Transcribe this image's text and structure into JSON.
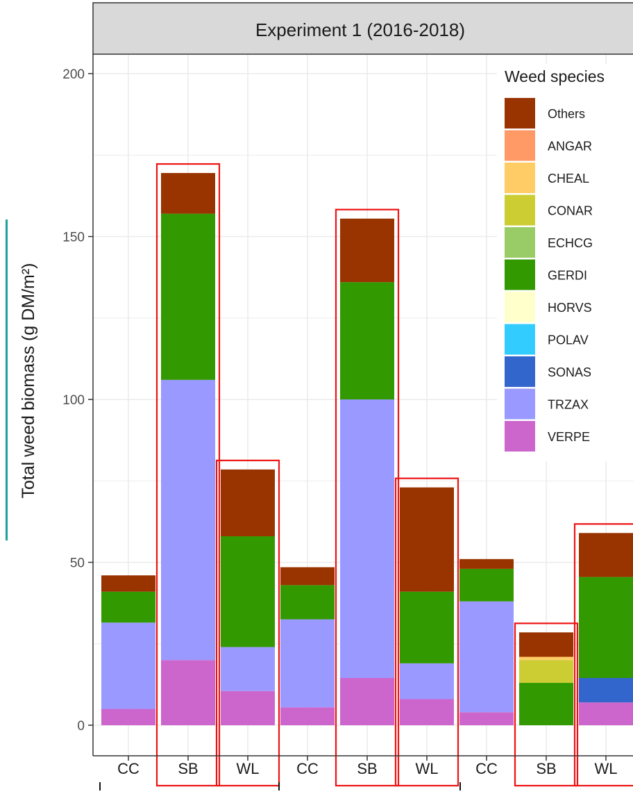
{
  "chart_data": {
    "type": "bar",
    "stacked": true,
    "title": "Experiment 1 (2016-2018)",
    "ylabel": "Total weed biomass (g DM/m²)",
    "xlabel": "",
    "ylim": [
      -10,
      200
    ],
    "yticks": [
      0,
      50,
      100,
      150,
      200
    ],
    "grid": true,
    "legend_position": "top-right",
    "legend_title": "Weed species",
    "categories": [
      "CC",
      "SB",
      "WL",
      "CC",
      "SB",
      "WL",
      "CC",
      "SB",
      "WL"
    ],
    "highlighted": [
      false,
      true,
      true,
      false,
      true,
      true,
      false,
      true,
      true
    ],
    "series": [
      {
        "name": "VERPE",
        "color": "#cc66cc",
        "values": [
          5,
          20,
          10.5,
          5.5,
          14.5,
          8,
          4,
          0,
          7
        ]
      },
      {
        "name": "TRZAX",
        "color": "#9999ff",
        "values": [
          26.5,
          86,
          13.5,
          27,
          85.5,
          11,
          34,
          0,
          0
        ]
      },
      {
        "name": "SONAS",
        "color": "#3366cc",
        "values": [
          0,
          0,
          0,
          0,
          0,
          0,
          0,
          0,
          7.5
        ]
      },
      {
        "name": "POLAV",
        "color": "#33ccff",
        "values": [
          0,
          0,
          0,
          0,
          0,
          0,
          0,
          0,
          0
        ]
      },
      {
        "name": "HORVS",
        "color": "#ffffcc",
        "values": [
          0,
          0,
          0,
          0,
          0,
          0,
          0,
          0,
          0
        ]
      },
      {
        "name": "GERDI",
        "color": "#339900",
        "values": [
          9.5,
          51,
          34,
          10.5,
          36,
          22,
          10,
          13,
          31
        ]
      },
      {
        "name": "ECHCG",
        "color": "#99cc66",
        "values": [
          0,
          0,
          0,
          0,
          0,
          0,
          0,
          0,
          0
        ]
      },
      {
        "name": "CONAR",
        "color": "#cccc33",
        "values": [
          0,
          0,
          0,
          0,
          0,
          0,
          0,
          7,
          0
        ]
      },
      {
        "name": "CHEAL",
        "color": "#ffcc66",
        "values": [
          0,
          0,
          0,
          0,
          0,
          0,
          0,
          1,
          0
        ]
      },
      {
        "name": "ANGAR",
        "color": "#ff9966",
        "values": [
          0,
          0,
          0,
          0,
          0,
          0,
          0,
          0,
          0
        ]
      },
      {
        "name": "Others",
        "color": "#993300",
        "values": [
          5,
          12.5,
          20.5,
          5.5,
          19.5,
          32,
          3,
          7.5,
          13.5
        ]
      }
    ],
    "legend_order": [
      "Others",
      "ANGAR",
      "CHEAL",
      "CONAR",
      "ECHCG",
      "GERDI",
      "HORVS",
      "POLAV",
      "SONAS",
      "TRZAX",
      "VERPE"
    ]
  }
}
